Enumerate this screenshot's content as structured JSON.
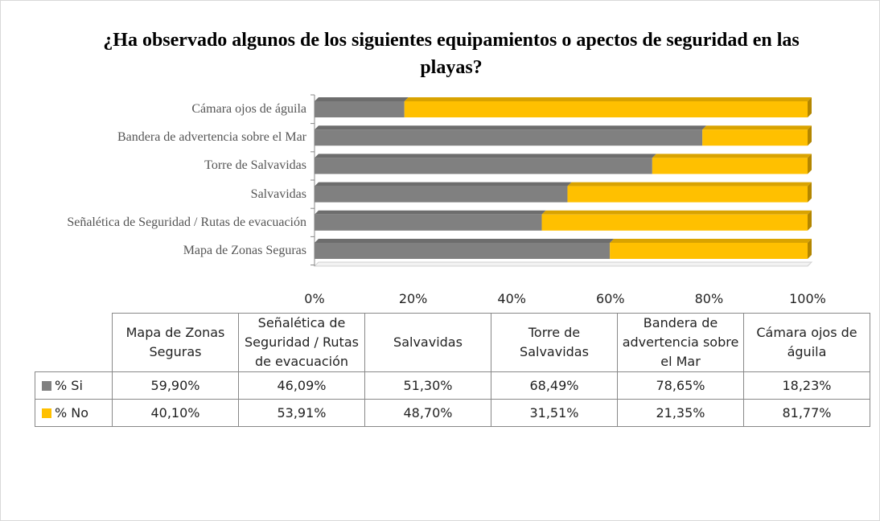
{
  "chart_data": {
    "type": "bar",
    "stacked": true,
    "orientation": "horizontal",
    "title": "¿Ha observado algunos de los siguientes equipamientos o apectos de seguridad en las playas?",
    "categories": [
      "Mapa de Zonas Seguras",
      "Señalética de Seguridad / Rutas de evacuación",
      "Salvavidas",
      "Torre de Salvavidas",
      "Bandera de advertencia sobre el Mar",
      "Cámara ojos de águila"
    ],
    "series": [
      {
        "name": "% Si",
        "color": "#808080",
        "values": [
          59.9,
          46.09,
          51.3,
          68.49,
          78.65,
          18.23
        ],
        "value_labels": [
          "59,90%",
          "46,09%",
          "51,30%",
          "68,49%",
          "78,65%",
          "18,23%"
        ]
      },
      {
        "name": "% No",
        "color": "#ffc000",
        "values": [
          40.1,
          53.91,
          48.7,
          31.51,
          21.35,
          81.77
        ],
        "value_labels": [
          "40,10%",
          "53,91%",
          "48,70%",
          "31,51%",
          "21,35%",
          "81,77%"
        ]
      }
    ],
    "xlim": [
      0,
      100
    ],
    "xticks": [
      {
        "value": 0,
        "label": "0%"
      },
      {
        "value": 20,
        "label": "20%"
      },
      {
        "value": 40,
        "label": "40%"
      },
      {
        "value": 60,
        "label": "60%"
      },
      {
        "value": 80,
        "label": "80%"
      },
      {
        "value": 100,
        "label": "100%"
      }
    ],
    "grid": false,
    "data_table": true
  }
}
